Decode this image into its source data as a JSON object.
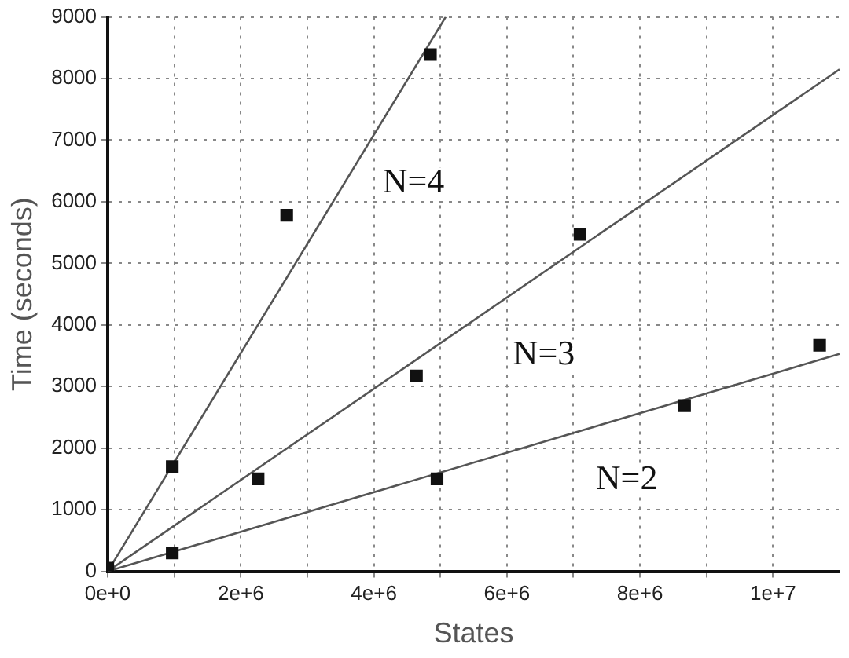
{
  "chart_data": {
    "type": "scatter",
    "xlabel": "States",
    "ylabel": "Time (seconds)",
    "xlim": [
      0,
      11000000
    ],
    "ylim": [
      0,
      9000
    ],
    "xticks": [
      {
        "value": 0,
        "label": "0e+0"
      },
      {
        "value": 1000000,
        "label": null
      },
      {
        "value": 2000000,
        "label": "2e+6"
      },
      {
        "value": 3000000,
        "label": null
      },
      {
        "value": 4000000,
        "label": "4e+6"
      },
      {
        "value": 5000000,
        "label": null
      },
      {
        "value": 6000000,
        "label": "6e+6"
      },
      {
        "value": 7000000,
        "label": null
      },
      {
        "value": 8000000,
        "label": "8e+6"
      },
      {
        "value": 9000000,
        "label": null
      },
      {
        "value": 10000000,
        "label": "1e+7"
      }
    ],
    "yticks": [
      0,
      1000,
      2000,
      3000,
      4000,
      5000,
      6000,
      7000,
      8000,
      9000
    ],
    "grid": true,
    "legend": false,
    "marker": "square",
    "series": [
      {
        "color": "#111111",
        "x": [
          0,
          970000,
          2690000,
          4850000
        ],
        "values": [
          50,
          1700,
          5780,
          8390
        ]
      },
      {
        "color": "#111111",
        "x": [
          2260000,
          4640000,
          7100000
        ],
        "values": [
          1500,
          3170,
          5470
        ]
      },
      {
        "color": "#111111",
        "x": [
          970000,
          4950000,
          8670000,
          10700000
        ],
        "values": [
          300,
          1500,
          2690,
          3670
        ]
      },
      {
        "type": "line",
        "name": "N=4",
        "color": "#555555",
        "x": [
          0,
          5080000
        ],
        "values": [
          0,
          9000
        ],
        "line_style": "solid",
        "marker": "none"
      },
      {
        "type": "line",
        "name": "N=3",
        "color": "#555555",
        "x": [
          0,
          11000000
        ],
        "values": [
          0,
          8150
        ],
        "line_style": "solid",
        "marker": "none"
      },
      {
        "type": "line",
        "name": "N=2",
        "color": "#555555",
        "x": [
          0,
          11000000
        ],
        "values": [
          0,
          3530
        ],
        "line_style": "solid",
        "marker": "none"
      }
    ]
  }
}
